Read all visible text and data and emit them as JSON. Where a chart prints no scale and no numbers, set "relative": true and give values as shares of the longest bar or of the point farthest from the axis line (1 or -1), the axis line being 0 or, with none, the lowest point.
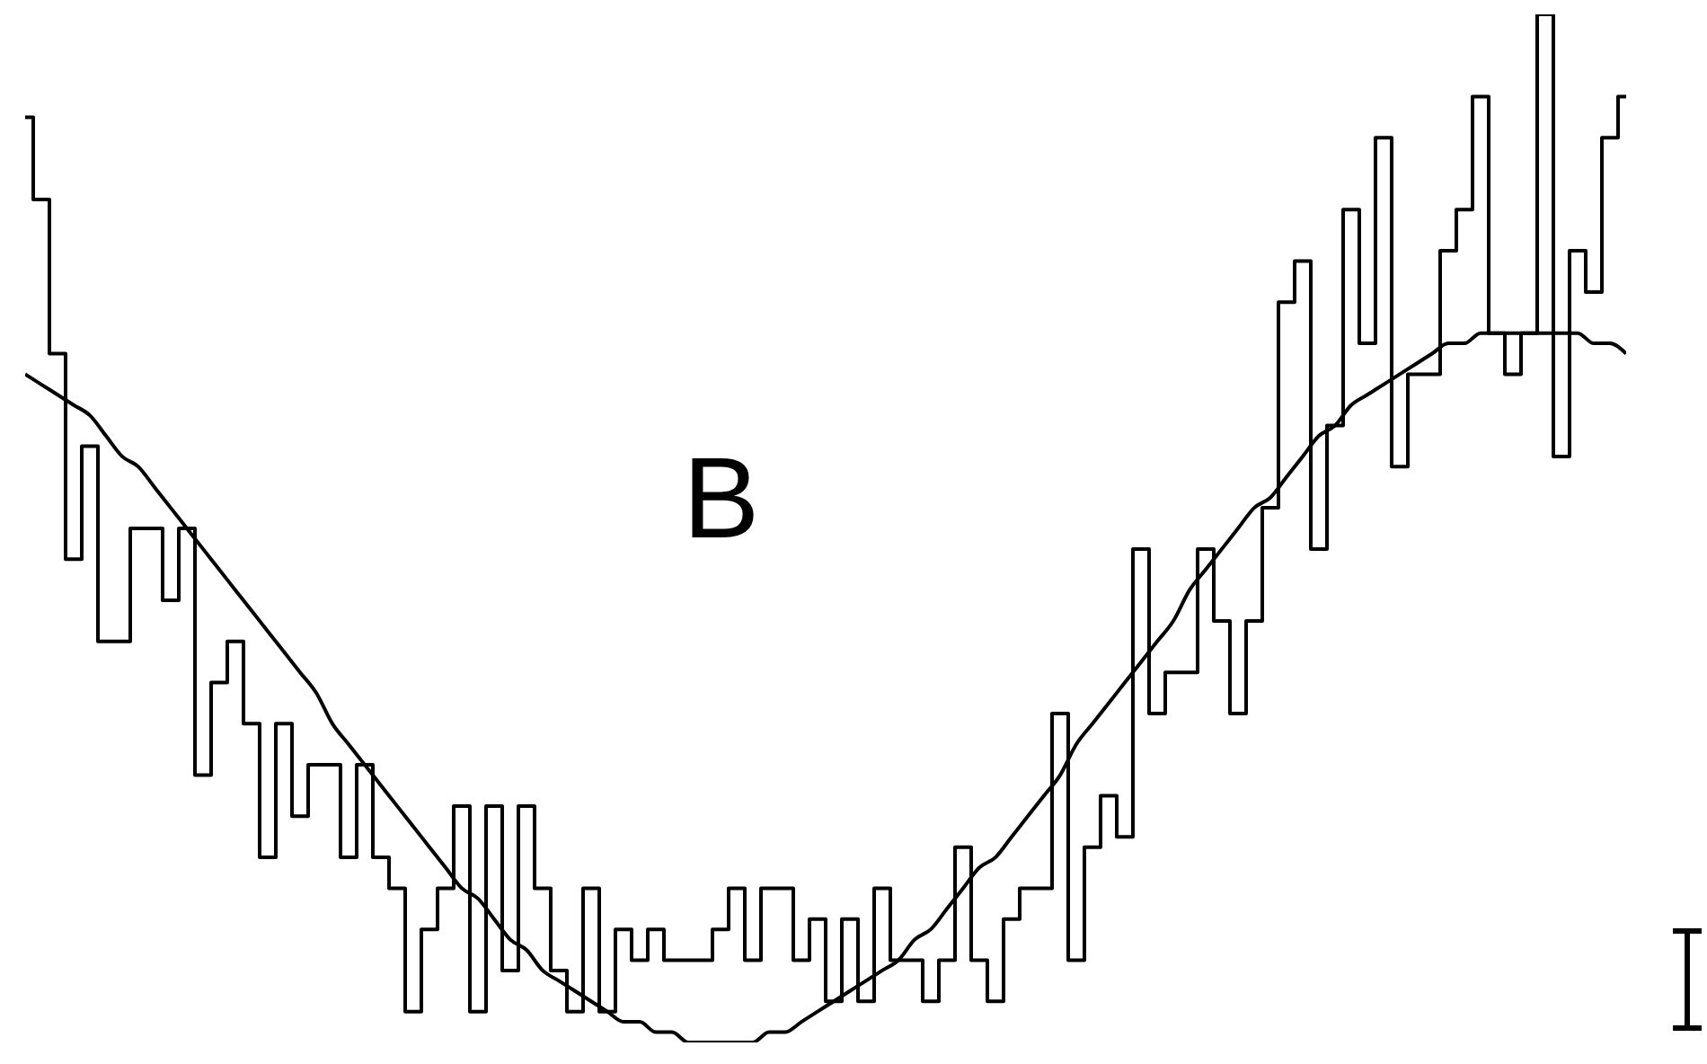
{
  "chart_data": {
    "type": "step",
    "relative": true,
    "grid": false,
    "legend": false,
    "marker": "none",
    "categories": [
      null,
      null,
      null,
      null,
      null,
      null,
      null,
      null,
      null,
      null,
      null,
      null,
      null,
      null,
      null,
      null,
      null,
      null,
      null,
      null,
      null,
      null,
      null,
      null,
      null,
      null,
      null,
      null,
      null,
      null,
      null,
      null,
      null,
      null,
      null,
      null,
      null,
      null,
      null,
      null,
      null,
      null,
      null,
      null,
      null,
      null,
      null,
      null,
      null,
      null,
      null,
      null,
      null,
      null,
      null,
      null,
      null,
      null,
      null,
      null,
      null,
      null,
      null,
      null,
      null,
      null,
      null,
      null,
      null,
      null,
      null,
      null,
      null,
      null,
      null,
      null,
      null,
      null,
      null,
      null,
      null,
      null,
      null,
      null,
      null,
      null,
      null,
      null,
      null,
      null,
      null,
      null,
      null,
      null,
      null,
      null,
      null,
      null,
      null,
      null
    ],
    "series": [
      {
        "type": "step",
        "color": "#000000",
        "values": [
          0.9,
          0.82,
          0.67,
          0.47,
          0.58,
          0.39,
          0.39,
          0.5,
          0.5,
          0.43,
          0.5,
          0.26,
          0.35,
          0.39,
          0.31,
          0.18,
          0.31,
          0.22,
          0.27,
          0.27,
          0.18,
          0.27,
          0.18,
          0.15,
          0.03,
          0.11,
          0.15,
          0.23,
          0.03,
          0.23,
          0.07,
          0.23,
          0.15,
          0.07,
          0.03,
          0.15,
          0.03,
          0.11,
          0.08,
          0.11,
          0.08,
          0.08,
          0.08,
          0.11,
          0.15,
          0.08,
          0.15,
          0.15,
          0.08,
          0.12,
          0.04,
          0.12,
          0.04,
          0.15,
          0.08,
          0.08,
          0.04,
          0.08,
          0.19,
          0.08,
          0.04,
          0.12,
          0.15,
          0.15,
          0.32,
          0.08,
          0.19,
          0.24,
          0.2,
          0.48,
          0.32,
          0.36,
          0.36,
          0.48,
          0.41,
          0.32,
          0.41,
          0.52,
          0.72,
          0.76,
          0.48,
          0.6,
          0.81,
          0.68,
          0.88,
          0.56,
          0.65,
          0.65,
          0.77,
          0.81,
          0.92,
          0.69,
          0.65,
          0.69,
          1.0,
          0.57,
          0.77,
          0.73,
          0.88,
          0.92
        ]
      },
      {
        "type": "line",
        "color": "#000000",
        "values": [
          0.65,
          0.64,
          0.63,
          0.62,
          0.61,
          0.59,
          0.57,
          0.56,
          0.54,
          0.52,
          0.5,
          0.48,
          0.46,
          0.44,
          0.42,
          0.4,
          0.38,
          0.36,
          0.34,
          0.31,
          0.29,
          0.27,
          0.25,
          0.23,
          0.21,
          0.19,
          0.17,
          0.15,
          0.14,
          0.12,
          0.1,
          0.09,
          0.07,
          0.06,
          0.05,
          0.04,
          0.03,
          0.02,
          0.02,
          0.01,
          0.01,
          0.0,
          0.0,
          0.0,
          0.0,
          0.0,
          0.01,
          0.01,
          0.02,
          0.03,
          0.04,
          0.05,
          0.06,
          0.07,
          0.08,
          0.1,
          0.11,
          0.13,
          0.15,
          0.17,
          0.18,
          0.2,
          0.22,
          0.24,
          0.26,
          0.29,
          0.31,
          0.33,
          0.35,
          0.37,
          0.39,
          0.41,
          0.44,
          0.46,
          0.48,
          0.5,
          0.52,
          0.53,
          0.55,
          0.57,
          0.59,
          0.6,
          0.62,
          0.63,
          0.64,
          0.65,
          0.66,
          0.67,
          0.68,
          0.68,
          0.69,
          0.69,
          0.69,
          0.69,
          0.69,
          0.69,
          0.69,
          0.68,
          0.68,
          0.67
        ]
      }
    ],
    "annotations": [
      "B"
    ]
  }
}
